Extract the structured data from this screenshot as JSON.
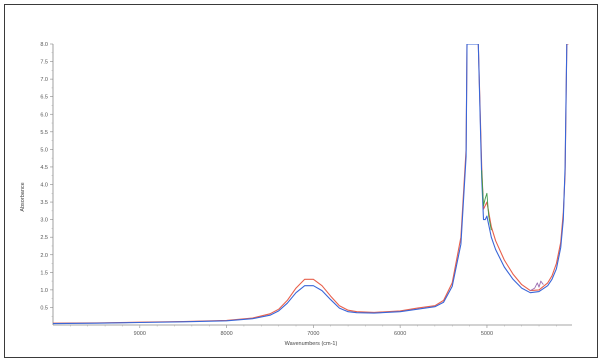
{
  "chart_data": {
    "type": "line",
    "xlabel": "Wavenumbers (cm-1)",
    "ylabel": "Absorbance",
    "xlim": [
      10000,
      4020
    ],
    "ylim": [
      0,
      8.0
    ],
    "x_ticks": [
      9000,
      8000,
      7000,
      6000,
      5000
    ],
    "x_tick_labels": [
      "9000",
      "8000",
      "7000",
      "6000",
      "5000"
    ],
    "y_ticks": [
      0.5,
      1.0,
      1.5,
      2.0,
      2.5,
      3.0,
      3.5,
      4.0,
      4.5,
      5.0,
      5.5,
      6.0,
      6.5,
      7.0,
      7.5,
      8.0
    ],
    "y_tick_labels": [
      "0.5",
      "1.0",
      "1.5",
      "2.0",
      "2.5",
      "3.0",
      "3.5",
      "4.0",
      "4.5",
      "5.0",
      "5.5",
      "6.0",
      "6.5",
      "7.0",
      "7.5",
      "8.0"
    ],
    "grid": false,
    "series": [
      {
        "color": "#e8604c",
        "x": [
          10000,
          9500,
          9000,
          8500,
          8000,
          7700,
          7500,
          7400,
          7300,
          7200,
          7100,
          7000,
          6900,
          6800,
          6700,
          6600,
          6500,
          6300,
          6000,
          5800,
          5600,
          5500,
          5400,
          5300,
          5240,
          5230,
          5180,
          5100,
          5060,
          5040,
          5020,
          5000,
          4950,
          4900,
          4800,
          4700,
          4600,
          4500,
          4400,
          4300,
          4250,
          4200,
          4150,
          4120,
          4100,
          4080,
          4060
        ],
        "y": [
          0.05,
          0.06,
          0.08,
          0.1,
          0.13,
          0.2,
          0.32,
          0.45,
          0.7,
          1.05,
          1.3,
          1.3,
          1.12,
          0.82,
          0.55,
          0.42,
          0.38,
          0.36,
          0.4,
          0.48,
          0.55,
          0.7,
          1.2,
          2.5,
          5.0,
          8.0,
          8.0,
          8.0,
          4.5,
          3.3,
          3.4,
          3.5,
          2.8,
          2.4,
          1.85,
          1.45,
          1.15,
          0.98,
          1.0,
          1.2,
          1.4,
          1.75,
          2.35,
          3.2,
          4.3,
          8.0,
          8.0
        ]
      },
      {
        "color": "#3a66d8",
        "x": [
          10000,
          9500,
          9000,
          8500,
          8000,
          7700,
          7500,
          7400,
          7300,
          7200,
          7100,
          7000,
          6900,
          6800,
          6700,
          6600,
          6500,
          6300,
          6000,
          5800,
          5600,
          5500,
          5400,
          5300,
          5240,
          5230,
          5180,
          5100,
          5060,
          5040,
          5020,
          5000,
          4950,
          4900,
          4800,
          4700,
          4600,
          4500,
          4400,
          4300,
          4250,
          4200,
          4150,
          4120,
          4100,
          4080
        ],
        "y": [
          0.04,
          0.05,
          0.07,
          0.09,
          0.12,
          0.18,
          0.28,
          0.4,
          0.62,
          0.92,
          1.12,
          1.12,
          0.98,
          0.72,
          0.48,
          0.38,
          0.35,
          0.34,
          0.38,
          0.45,
          0.52,
          0.65,
          1.1,
          2.3,
          4.8,
          8.0,
          8.0,
          8.0,
          4.2,
          3.0,
          3.0,
          3.1,
          2.5,
          2.15,
          1.65,
          1.3,
          1.05,
          0.92,
          0.95,
          1.12,
          1.3,
          1.6,
          2.2,
          3.0,
          4.5,
          8.0
        ]
      },
      {
        "color": "#3f9a4a",
        "x": [
          5060,
          5040,
          5020,
          5000,
          4980,
          4950
        ],
        "y": [
          4.4,
          3.4,
          3.6,
          3.75,
          3.1,
          2.7
        ]
      },
      {
        "color": "#9a6bb0",
        "x": [
          4500,
          4450,
          4420,
          4400,
          4380,
          4350
        ],
        "y": [
          0.98,
          1.05,
          1.2,
          1.08,
          1.25,
          1.15
        ]
      }
    ]
  }
}
